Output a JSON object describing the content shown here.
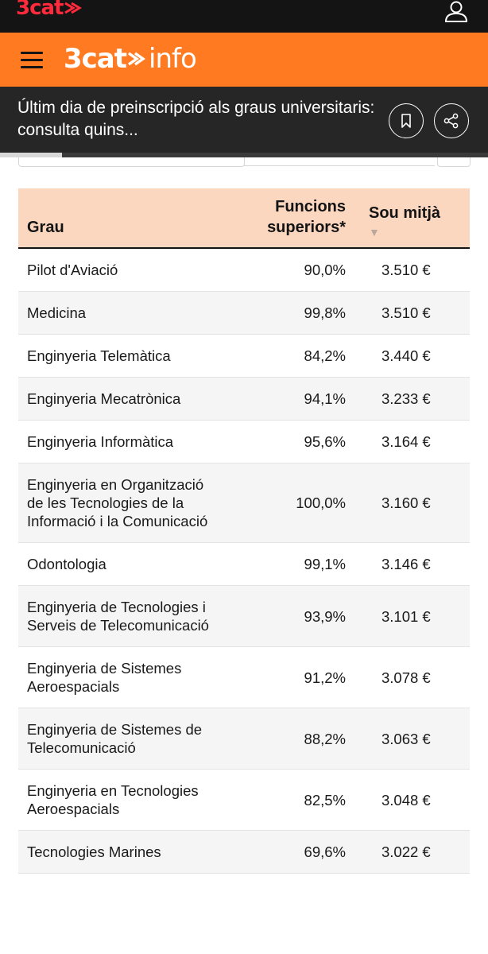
{
  "topbar": {
    "logo": "3cat",
    "logo_icon": "3cat-arrow-logo",
    "user_icon": "user-icon"
  },
  "brandbar": {
    "menu_icon": "hamburger-icon",
    "brand_main": "3cat",
    "brand_sub": "info"
  },
  "article": {
    "title": "Últim dia de preinscripció als graus universitaris: consulta quins...",
    "bookmark_icon": "bookmark-icon",
    "share_icon": "share-icon"
  },
  "table": {
    "headers": {
      "grau": "Grau",
      "funcions": "Funcions superiors*",
      "sou": "Sou mitjà",
      "sort_indicator": "▼"
    },
    "rows": [
      {
        "grau": "Pilot d'Aviació",
        "funcions": "90,0%",
        "sou": "3.510 €"
      },
      {
        "grau": "Medicina",
        "funcions": "99,8%",
        "sou": "3.510 €"
      },
      {
        "grau": "Enginyeria Telemàtica",
        "funcions": "84,2%",
        "sou": "3.440 €"
      },
      {
        "grau": "Enginyeria Mecatrònica",
        "funcions": "94,1%",
        "sou": "3.233 €"
      },
      {
        "grau": "Enginyeria Informàtica",
        "funcions": "95,6%",
        "sou": "3.164 €"
      },
      {
        "grau": "Enginyeria en Organització de les Tecnologies de la Informació i la Comunicació",
        "funcions": "100,0%",
        "sou": "3.160 €"
      },
      {
        "grau": "Odontologia",
        "funcions": "99,1%",
        "sou": "3.146 €"
      },
      {
        "grau": "Enginyeria de Tecnologies i Serveis de Telecomunicació",
        "funcions": "93,9%",
        "sou": "3.101 €"
      },
      {
        "grau": "Enginyeria de Sistemes Aeroespacials",
        "funcions": "91,2%",
        "sou": "3.078 €"
      },
      {
        "grau": "Enginyeria de Sistemes de Telecomunicació",
        "funcions": "88,2%",
        "sou": "3.063 €"
      },
      {
        "grau": "Enginyeria en Tecnologies Aeroespacials",
        "funcions": "82,5%",
        "sou": "3.048 €"
      },
      {
        "grau": "Tecnologies Marines",
        "funcions": "69,6%",
        "sou": "3.022 €"
      }
    ]
  },
  "colors": {
    "topbar": "#141414",
    "brand": "#ff7a20",
    "logo_red": "#ff2a3c",
    "header_bg": "#fcd7c0",
    "article_bg": "#262626"
  }
}
